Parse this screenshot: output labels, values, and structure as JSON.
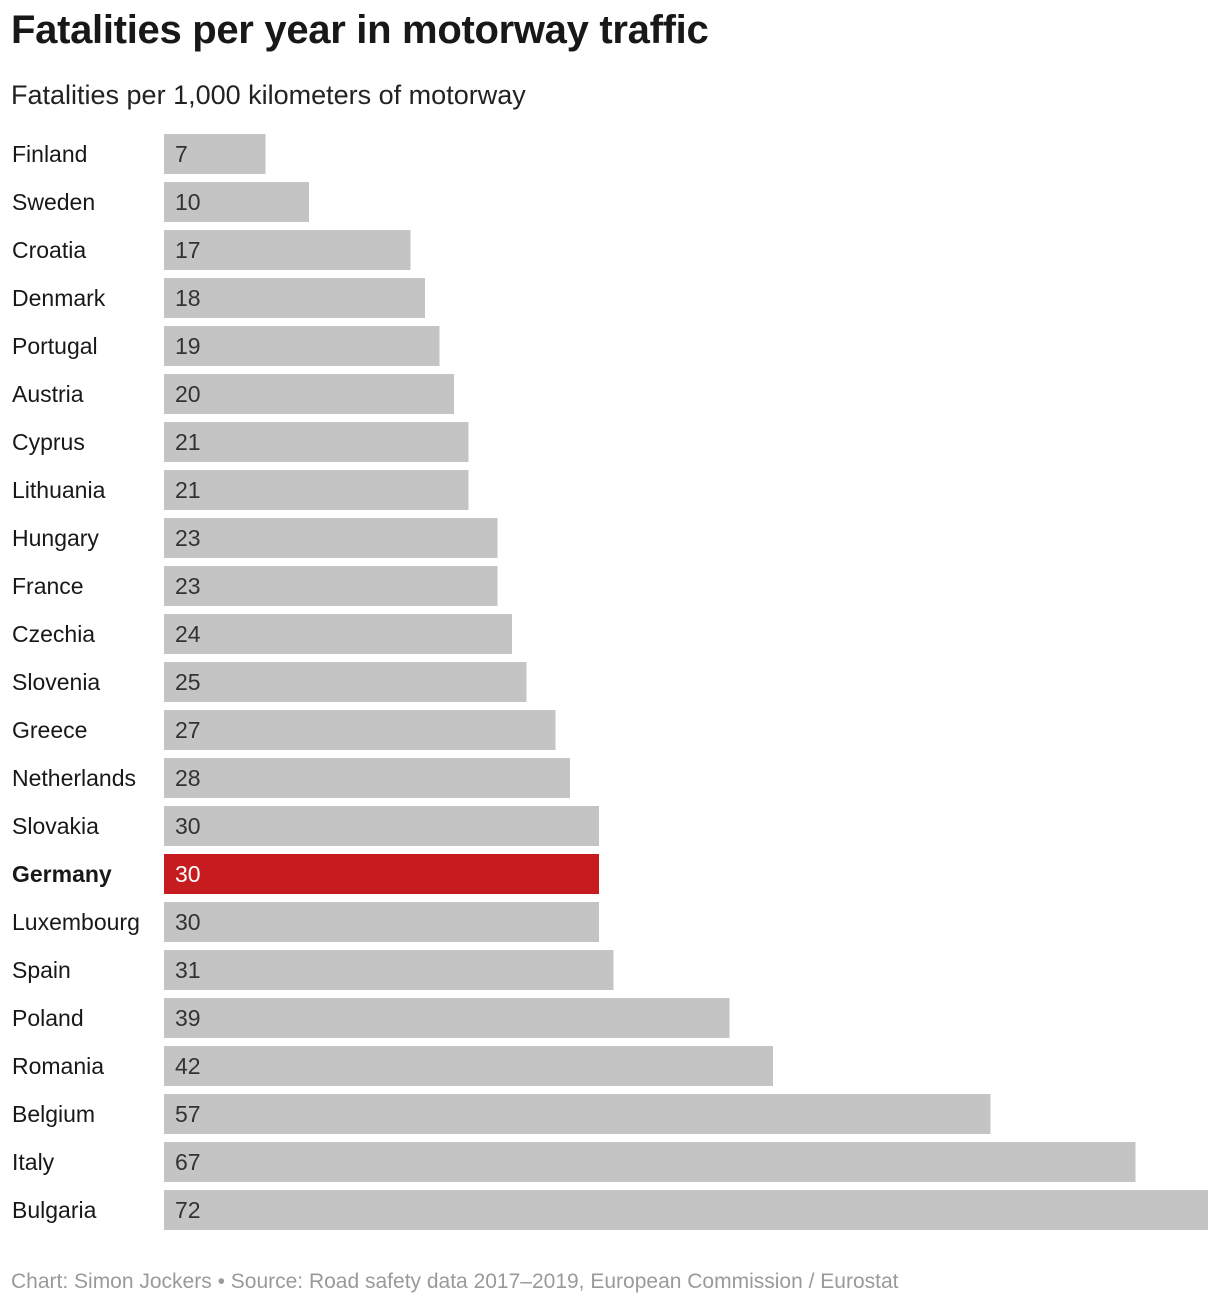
{
  "chart_data": {
    "type": "bar",
    "orientation": "horizontal",
    "title": "Fatalities per year in motorway traffic",
    "subtitle": "Fatalities per 1,000 kilometers of motorway",
    "categories": [
      "Finland",
      "Sweden",
      "Croatia",
      "Denmark",
      "Portugal",
      "Austria",
      "Cyprus",
      "Lithuania",
      "Hungary",
      "France",
      "Czechia",
      "Slovenia",
      "Greece",
      "Netherlands",
      "Slovakia",
      "Germany",
      "Luxembourg",
      "Spain",
      "Poland",
      "Romania",
      "Belgium",
      "Italy",
      "Bulgaria"
    ],
    "values": [
      7,
      10,
      17,
      18,
      19,
      20,
      21,
      21,
      23,
      23,
      24,
      25,
      27,
      28,
      30,
      30,
      30,
      31,
      39,
      42,
      57,
      67,
      72
    ],
    "highlight": "Germany",
    "xlim": [
      0,
      72
    ],
    "grid": false,
    "data_labels": true
  },
  "colors": {
    "bar": "#c4c4c4",
    "highlight": "#c71c1f"
  },
  "footer": {
    "source": "Chart: Simon Jockers • Source: Road safety data 2017–2019, European Commission / Eurostat"
  }
}
